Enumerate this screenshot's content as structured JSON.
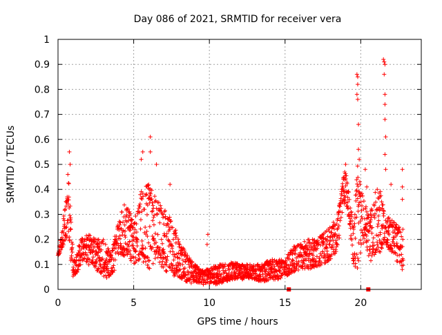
{
  "chart_data": {
    "type": "scatter",
    "title": "Day 086 of 2021, SRMTID for receiver vera",
    "xlabel": "GPS time / hours",
    "ylabel": "SRMTID / TECUs",
    "xlim": [
      0,
      24
    ],
    "ylim": [
      0,
      1
    ],
    "x_ticks": [
      0,
      5,
      10,
      15,
      20
    ],
    "x_tick_labels": [
      "0",
      "5",
      "10",
      "15",
      "20"
    ],
    "y_ticks": [
      0,
      0.1,
      0.2,
      0.3,
      0.4,
      0.5,
      0.6,
      0.7,
      0.8,
      0.9,
      1
    ],
    "y_tick_labels": [
      "0",
      "0.1",
      "0.2",
      "0.3",
      "0.4",
      "0.5",
      "0.6",
      "0.7",
      "0.8",
      "0.9",
      "1"
    ],
    "grid": true,
    "marker": "+",
    "series_color": "#ff0000",
    "envelope": {
      "hours": [
        0.0,
        0.2,
        0.4,
        0.6,
        0.7,
        0.8,
        1.0,
        1.2,
        1.5,
        2.0,
        2.5,
        3.0,
        3.5,
        4.0,
        4.5,
        5.0,
        5.5,
        6.0,
        6.5,
        7.0,
        7.5,
        8.0,
        8.5,
        9.0,
        9.5,
        10.0,
        10.5,
        11.0,
        11.5,
        12.0,
        12.5,
        13.0,
        13.5,
        14.0,
        14.5,
        15.0,
        15.5,
        16.0,
        16.5,
        17.0,
        17.5,
        18.0,
        18.5,
        18.8,
        19.0,
        19.2,
        19.5,
        19.8,
        20.0,
        20.3,
        20.6,
        21.0,
        21.3,
        21.6,
        22.0,
        22.5,
        22.8
      ],
      "low": [
        0.12,
        0.16,
        0.18,
        0.2,
        0.22,
        0.12,
        0.05,
        0.05,
        0.1,
        0.1,
        0.08,
        0.05,
        0.04,
        0.12,
        0.14,
        0.1,
        0.12,
        0.08,
        0.12,
        0.08,
        0.05,
        0.05,
        0.03,
        0.02,
        0.02,
        0.02,
        0.02,
        0.03,
        0.04,
        0.04,
        0.04,
        0.04,
        0.03,
        0.04,
        0.04,
        0.05,
        0.07,
        0.08,
        0.08,
        0.09,
        0.1,
        0.12,
        0.16,
        0.3,
        0.35,
        0.3,
        0.1,
        0.08,
        0.15,
        0.2,
        0.1,
        0.15,
        0.15,
        0.18,
        0.15,
        0.1,
        0.07
      ],
      "high": [
        0.16,
        0.22,
        0.32,
        0.4,
        0.44,
        0.36,
        0.14,
        0.14,
        0.2,
        0.22,
        0.2,
        0.2,
        0.14,
        0.28,
        0.36,
        0.26,
        0.4,
        0.42,
        0.36,
        0.32,
        0.3,
        0.2,
        0.14,
        0.1,
        0.08,
        0.08,
        0.1,
        0.1,
        0.11,
        0.1,
        0.1,
        0.1,
        0.1,
        0.12,
        0.12,
        0.12,
        0.17,
        0.18,
        0.2,
        0.2,
        0.22,
        0.25,
        0.3,
        0.45,
        0.48,
        0.4,
        0.25,
        0.5,
        0.4,
        0.34,
        0.3,
        0.4,
        0.4,
        0.3,
        0.28,
        0.25,
        0.24
      ]
    },
    "spikes": [
      {
        "x": 0.75,
        "y": 0.55
      },
      {
        "x": 0.8,
        "y": 0.5
      },
      {
        "x": 0.65,
        "y": 0.46
      },
      {
        "x": 5.6,
        "y": 0.55
      },
      {
        "x": 5.5,
        "y": 0.52
      },
      {
        "x": 6.1,
        "y": 0.61
      },
      {
        "x": 6.1,
        "y": 0.55
      },
      {
        "x": 6.5,
        "y": 0.5
      },
      {
        "x": 7.4,
        "y": 0.42
      },
      {
        "x": 9.9,
        "y": 0.22
      },
      {
        "x": 9.85,
        "y": 0.18
      },
      {
        "x": 19.0,
        "y": 0.5
      },
      {
        "x": 19.75,
        "y": 0.86
      },
      {
        "x": 19.8,
        "y": 0.85
      },
      {
        "x": 19.8,
        "y": 0.82
      },
      {
        "x": 19.75,
        "y": 0.78
      },
      {
        "x": 19.8,
        "y": 0.76
      },
      {
        "x": 19.85,
        "y": 0.66
      },
      {
        "x": 19.85,
        "y": 0.56
      },
      {
        "x": 19.9,
        "y": 0.52
      },
      {
        "x": 20.3,
        "y": 0.48
      },
      {
        "x": 20.4,
        "y": 0.41
      },
      {
        "x": 21.5,
        "y": 0.92
      },
      {
        "x": 21.55,
        "y": 0.91
      },
      {
        "x": 21.6,
        "y": 0.9
      },
      {
        "x": 21.55,
        "y": 0.86
      },
      {
        "x": 21.6,
        "y": 0.78
      },
      {
        "x": 21.6,
        "y": 0.74
      },
      {
        "x": 21.6,
        "y": 0.68
      },
      {
        "x": 21.65,
        "y": 0.61
      },
      {
        "x": 21.6,
        "y": 0.54
      },
      {
        "x": 21.65,
        "y": 0.48
      },
      {
        "x": 22.0,
        "y": 0.42
      },
      {
        "x": 22.75,
        "y": 0.48
      },
      {
        "x": 22.75,
        "y": 0.41
      },
      {
        "x": 22.75,
        "y": 0.36
      }
    ],
    "gap_markers": [
      {
        "x": 15.25,
        "y": 0
      },
      {
        "x": 20.5,
        "y": 0
      }
    ]
  }
}
